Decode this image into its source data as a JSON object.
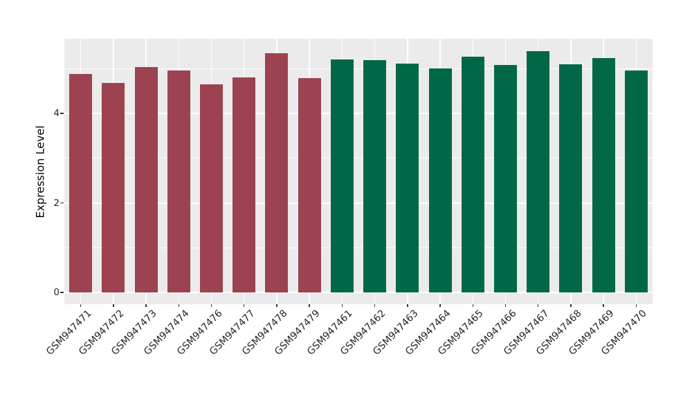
{
  "chart_data": {
    "type": "bar",
    "title": "",
    "xlabel": "",
    "ylabel": "Expression Level",
    "categories": [
      "GSM947471",
      "GSM947472",
      "GSM947473",
      "GSM947474",
      "GSM947476",
      "GSM947477",
      "GSM947478",
      "GSM947479",
      "GSM947461",
      "GSM947462",
      "GSM947463",
      "GSM947464",
      "GSM947465",
      "GSM947466",
      "GSM947467",
      "GSM947468",
      "GSM947469",
      "GSM947470"
    ],
    "values": [
      4.88,
      4.68,
      5.04,
      4.96,
      4.65,
      4.8,
      5.35,
      4.79,
      5.2,
      5.19,
      5.11,
      5.0,
      5.26,
      5.08,
      5.39,
      5.1,
      5.24,
      4.96
    ],
    "bar_groups": [
      "maroon",
      "maroon",
      "maroon",
      "maroon",
      "maroon",
      "maroon",
      "maroon",
      "maroon",
      "green",
      "green",
      "green",
      "green",
      "green",
      "green",
      "green",
      "green",
      "green",
      "green"
    ],
    "colors": {
      "maroon": "#9C4250",
      "green": "#016847"
    },
    "y_ticks": [
      0,
      2,
      4
    ],
    "y_minor_gridlines": [
      1,
      3,
      5
    ],
    "ylim": [
      0,
      5.67
    ],
    "grid": "on",
    "legend": "none",
    "panel_background": "#EBEBEB",
    "gridline_color": "#FFFFFF",
    "axis_text_color": "#262626"
  }
}
